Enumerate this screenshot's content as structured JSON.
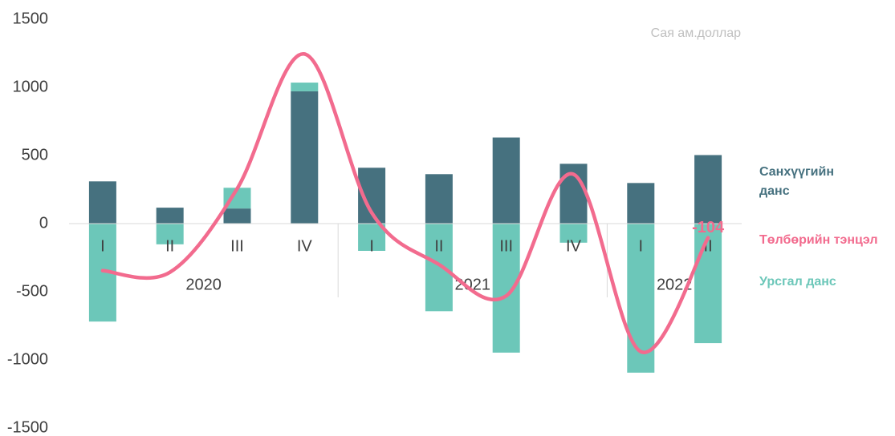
{
  "chart_data": {
    "type": "bar_line",
    "subtitle": "Сая ам.доллар",
    "categories": [
      "I",
      "II",
      "III",
      "IV",
      "I",
      "II",
      "III",
      "IV",
      "I",
      "II"
    ],
    "group_labels": [
      "2020",
      "2021",
      "2022"
    ],
    "group_sizes": [
      4,
      4,
      2
    ],
    "series": [
      {
        "name": "Санхүүгийн данс",
        "color": "#46717f",
        "kind": "bar",
        "values": [
          310,
          117,
          111,
          971,
          410,
          363,
          632,
          439,
          298,
          503
        ]
      },
      {
        "name": "Төлбөрийн тэнцэл",
        "color": "#f26b8e",
        "kind": "line",
        "values": [
          -345,
          -357,
          257,
          1245,
          80,
          -300,
          -530,
          362,
          -940,
          -104
        ],
        "value_labels": [
          null,
          null,
          null,
          null,
          null,
          null,
          null,
          null,
          null,
          "-104"
        ]
      },
      {
        "name": "Урсгал данс",
        "color": "#6cc7b9",
        "kind": "bar",
        "values": [
          -719,
          -152,
          152,
          64,
          -200,
          -643,
          -947,
          -140,
          -1094,
          -877
        ]
      }
    ],
    "ylim": [
      -1500,
      1500
    ],
    "yticks": [
      -1500,
      -1000,
      -500,
      0,
      500,
      1000,
      1500
    ],
    "grid": false,
    "stacked": true
  }
}
